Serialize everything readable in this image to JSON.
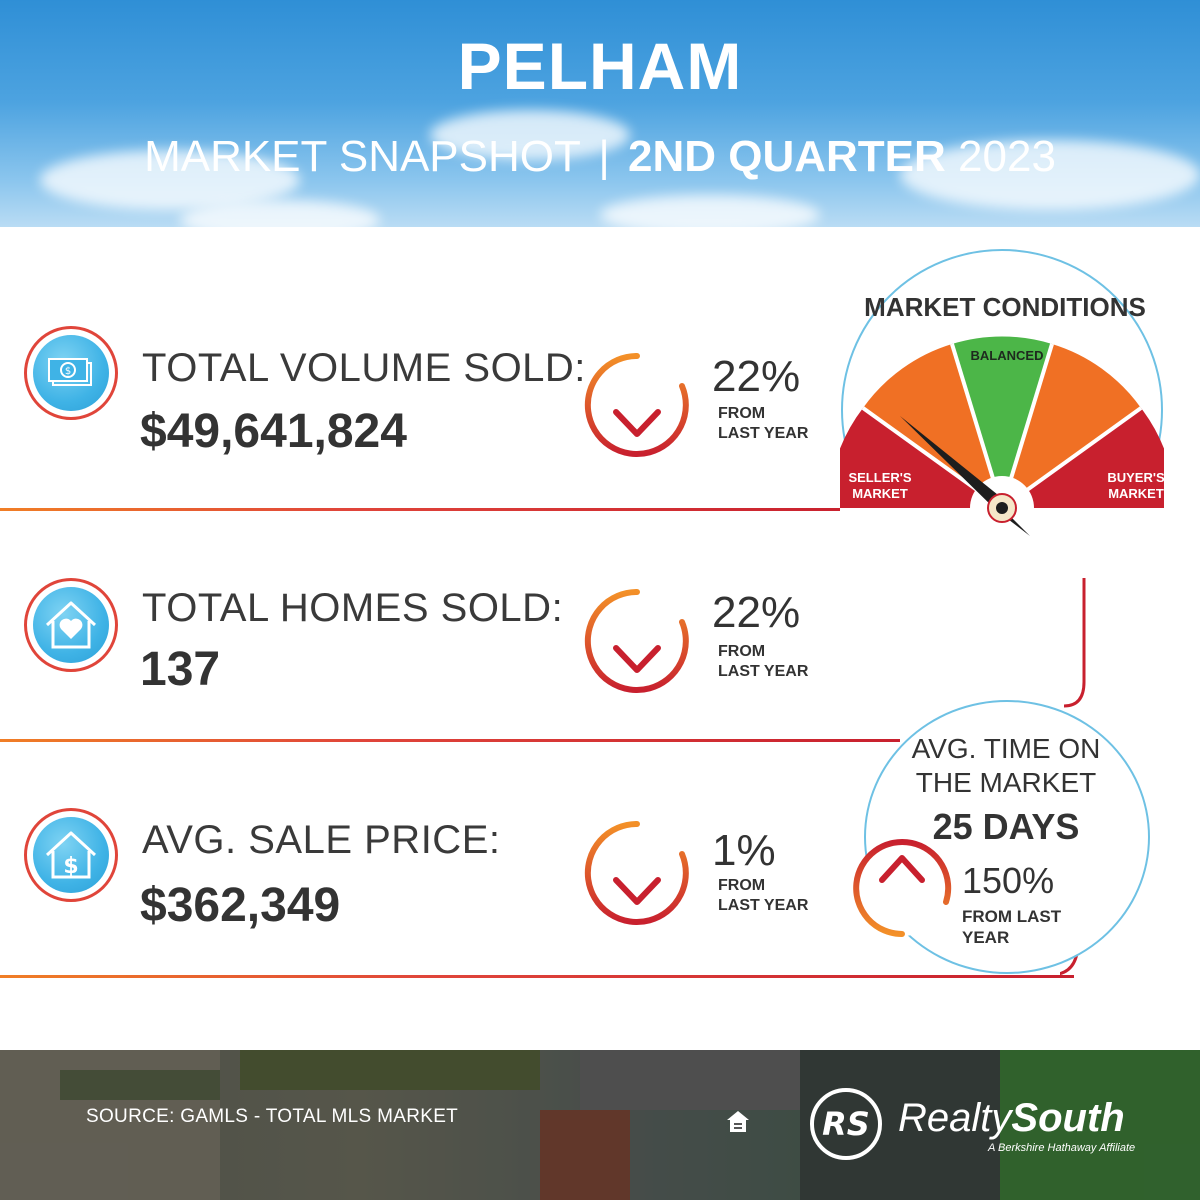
{
  "header": {
    "title": "PELHAM",
    "subtitle_prefix": "MARKET SNAPSHOT",
    "separator": "|",
    "subtitle_quarter": "2ND QUARTER",
    "subtitle_year": "2023"
  },
  "stats": [
    {
      "label": "TOTAL VOLUME SOLD:",
      "value": "$49,641,824",
      "change": "22%",
      "direction": "down",
      "from_line1": "FROM",
      "from_line2": "LAST YEAR",
      "icon": "money-icon"
    },
    {
      "label": "TOTAL HOMES SOLD:",
      "value": "137",
      "change": "22%",
      "direction": "down",
      "from_line1": "FROM",
      "from_line2": "LAST YEAR",
      "icon": "house-heart-icon"
    },
    {
      "label": "AVG. SALE PRICE:",
      "value": "$362,349",
      "change": "1%",
      "direction": "down",
      "from_line1": "FROM",
      "from_line2": "LAST YEAR",
      "icon": "house-dollar-icon"
    }
  ],
  "market_conditions": {
    "title": "MARKET CONDITIONS",
    "balanced_label": "BALANCED",
    "sellers_line1": "SELLER'S",
    "sellers_line2": "MARKET",
    "buyers_line1": "BUYER'S",
    "buyers_line2": "MARKET",
    "colors": {
      "red": "#c8202e",
      "orange": "#f07024",
      "green": "#4cb648"
    }
  },
  "time_on_market": {
    "label_line1": "AVG. TIME ON",
    "label_line2": "THE MARKET",
    "value": "25 DAYS",
    "change": "150%",
    "direction": "up",
    "from_line1": "FROM LAST",
    "from_line2": "YEAR"
  },
  "footer": {
    "source": "SOURCE: GAMLS - TOTAL MLS MARKET",
    "brand_light": "Realty",
    "brand_bold": "South",
    "brand_tag": "A Berkshire Hathaway Affiliate",
    "logo_letters": "RS"
  }
}
